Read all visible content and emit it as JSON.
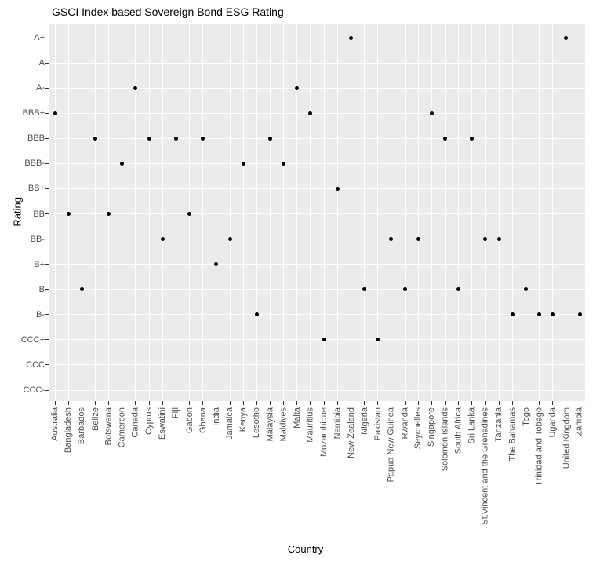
{
  "title": "GSCI Index based Sovereign Bond ESG Rating",
  "chart_data": {
    "type": "scatter",
    "title": "GSCI Index based Sovereign Bond ESG Rating",
    "xlabel": "Country",
    "ylabel": "Rating",
    "legend": "none",
    "grid": "major-only",
    "y_categories_top_to_bottom": [
      "A+",
      "A",
      "A-",
      "BBB+",
      "BBB",
      "BBB-",
      "BB+",
      "BB",
      "BB-",
      "B+",
      "B",
      "B-",
      "CCC+",
      "CCC",
      "CCC-"
    ],
    "x_categories": [
      "Australia",
      "Bangladesh",
      "Barbados",
      "Belize",
      "Botswana",
      "Cameroon",
      "Canada",
      "Cyprus",
      "Eswatini",
      "Fiji",
      "Gabon",
      "Ghana",
      "India",
      "Jamaica",
      "Kenya",
      "Lesotho",
      "Malaysia",
      "Maldives",
      "Malta",
      "Mauritius",
      "Mozambique",
      "Namibia",
      "New Zealand",
      "Nigeria",
      "Pakistan",
      "Papua New Guinea",
      "Rwanda",
      "Seychelles",
      "Singapore",
      "Solomon Islands",
      "South Africa",
      "Sri Lanka",
      "St.Vincent and the Grenadines",
      "Tanzania",
      "The Bahamas",
      "Togo",
      "Trinidad and Tobago",
      "Uganda",
      "United Kingdom",
      "Zambia"
    ],
    "points": [
      {
        "country": "Australia",
        "rating": "BBB+"
      },
      {
        "country": "Bangladesh",
        "rating": "BB"
      },
      {
        "country": "Barbados",
        "rating": "B"
      },
      {
        "country": "Belize",
        "rating": "BBB"
      },
      {
        "country": "Botswana",
        "rating": "BB"
      },
      {
        "country": "Cameroon",
        "rating": "BBB-"
      },
      {
        "country": "Canada",
        "rating": "A-"
      },
      {
        "country": "Cyprus",
        "rating": "BBB"
      },
      {
        "country": "Eswatini",
        "rating": "BB-"
      },
      {
        "country": "Fiji",
        "rating": "BBB"
      },
      {
        "country": "Gabon",
        "rating": "BB"
      },
      {
        "country": "Ghana",
        "rating": "BBB"
      },
      {
        "country": "India",
        "rating": "B+"
      },
      {
        "country": "Jamaica",
        "rating": "BB-"
      },
      {
        "country": "Kenya",
        "rating": "BBB-"
      },
      {
        "country": "Lesotho",
        "rating": "B-"
      },
      {
        "country": "Malaysia",
        "rating": "BBB"
      },
      {
        "country": "Maldives",
        "rating": "BBB-"
      },
      {
        "country": "Malta",
        "rating": "A-"
      },
      {
        "country": "Mauritius",
        "rating": "BBB+"
      },
      {
        "country": "Mozambique",
        "rating": "CCC+"
      },
      {
        "country": "Namibia",
        "rating": "BB+"
      },
      {
        "country": "New Zealand",
        "rating": "A+"
      },
      {
        "country": "Nigeria",
        "rating": "B"
      },
      {
        "country": "Pakistan",
        "rating": "CCC+"
      },
      {
        "country": "Papua New Guinea",
        "rating": "BB-"
      },
      {
        "country": "Rwanda",
        "rating": "B"
      },
      {
        "country": "Seychelles",
        "rating": "BB-"
      },
      {
        "country": "Singapore",
        "rating": "BBB+"
      },
      {
        "country": "Solomon Islands",
        "rating": "BBB"
      },
      {
        "country": "South Africa",
        "rating": "B"
      },
      {
        "country": "Sri Lanka",
        "rating": "BBB"
      },
      {
        "country": "St.Vincent and the Grenadines",
        "rating": "BB-"
      },
      {
        "country": "Tanzania",
        "rating": "BB-"
      },
      {
        "country": "The Bahamas",
        "rating": "B-"
      },
      {
        "country": "Togo",
        "rating": "B"
      },
      {
        "country": "Trinidad and Tobago",
        "rating": "B-"
      },
      {
        "country": "Uganda",
        "rating": "B-"
      },
      {
        "country": "United Kingdom",
        "rating": "A+"
      },
      {
        "country": "Zambia",
        "rating": "B-"
      }
    ],
    "style": {
      "panel_bg": "#EBEBEB",
      "grid_color": "#FFFFFF",
      "point_color": "#000000",
      "axis_text_color": "#4D4D4D",
      "tick_color": "#333333",
      "title_color": "#000000"
    }
  }
}
